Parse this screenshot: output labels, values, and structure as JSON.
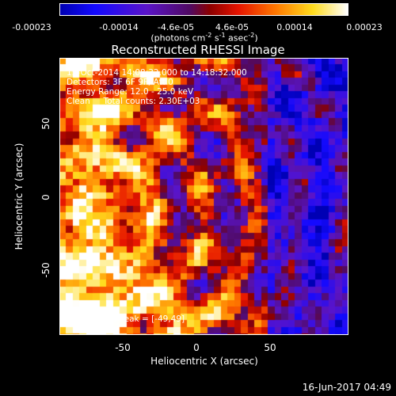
{
  "colorbar": {
    "ticks": [
      "-0.00023",
      "-0.00014",
      "-4.6e-05",
      "4.6e-05",
      "0.00014",
      "0.00023"
    ],
    "unit_main": "(photons cm",
    "unit_e1": "-2",
    "unit_mid": " s",
    "unit_e2": "-1",
    "unit_mid2": " asec",
    "unit_e3": "-2",
    "unit_end": ")"
  },
  "title": "Reconstructed RHESSI Image",
  "info": {
    "line1": "15-Oct-2014 14:08:32.000 to 14:18:32.000",
    "line2": "Detectors: 3F 6F 9F, Att 0",
    "line3": "Energy Range: 12.0 - 25.0 keV",
    "line4": "Clean     Total counts: 2.30E+03",
    "peak": "Position of Peak = [-49,49]"
  },
  "axes": {
    "xlabel": "Heliocentric X (arcsec)",
    "ylabel": "Heliocentric Y (arcsec)",
    "xticks": [
      "-50",
      "0",
      "50"
    ],
    "yticks": [
      "50",
      "0",
      "-50"
    ]
  },
  "footer": {
    "date": "16-Jun-2017 04:49"
  }
}
